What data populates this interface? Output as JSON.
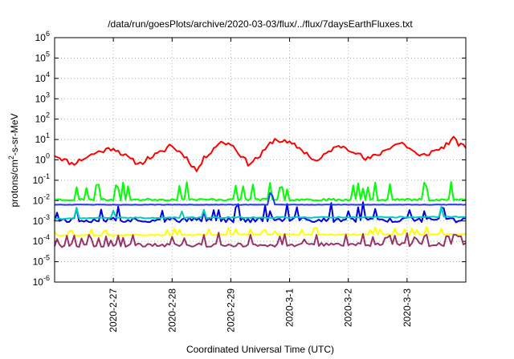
{
  "chart_data": {
    "type": "line",
    "title": "/data/run/goesPlots/archive/2020-03-03/flux/../flux/7daysEarthFluxes.txt",
    "xlabel": "Coordinated Universal Time (UTC)",
    "ylabel": {
      "pre": "protons/cm",
      "sup": "2",
      "post": "-s-sr-MeV"
    },
    "xlim": [
      0,
      7
    ],
    "ylim_log10": [
      -6,
      6
    ],
    "log_scale_y": true,
    "grid": true,
    "x_ticks": [
      {
        "x": 1,
        "label": "2020-2-27"
      },
      {
        "x": 2,
        "label": "2020-2-28"
      },
      {
        "x": 3,
        "label": "2020-2-29"
      },
      {
        "x": 4,
        "label": "2020-3-1"
      },
      {
        "x": 5,
        "label": "2020-3-2"
      },
      {
        "x": 6,
        "label": "2020-3-3"
      }
    ],
    "y_ticks": [
      {
        "exp": 6,
        "base": "10",
        "sup": "6"
      },
      {
        "exp": 5,
        "base": "10",
        "sup": "5"
      },
      {
        "exp": 4,
        "base": "10",
        "sup": "4"
      },
      {
        "exp": 3,
        "base": "10",
        "sup": "3"
      },
      {
        "exp": 2,
        "base": "10",
        "sup": "2"
      },
      {
        "exp": 1,
        "base": "10",
        "sup": "1"
      },
      {
        "exp": 0,
        "base": "10",
        "sup": "0"
      },
      {
        "exp": -1,
        "base": "10",
        "sup": "-1"
      },
      {
        "exp": -2,
        "base": "10",
        "sup": "-2"
      },
      {
        "exp": -3,
        "base": "10",
        "sup": "-3"
      },
      {
        "exp": -4,
        "base": "10",
        "sup": "-4"
      },
      {
        "exp": -5,
        "base": "10",
        "sup": "-5"
      },
      {
        "exp": -6,
        "base": "10",
        "sup": "-6"
      }
    ],
    "series": [
      {
        "color": "#ff0000",
        "base": [
          [
            0,
            0.25
          ],
          [
            0.3,
            -0.2
          ],
          [
            0.7,
            0.35
          ],
          [
            1.0,
            0.6
          ],
          [
            1.3,
            0.0
          ],
          [
            1.45,
            -0.2
          ],
          [
            1.6,
            0.1
          ],
          [
            1.85,
            0.4
          ],
          [
            1.95,
            0.75
          ],
          [
            2.2,
            0.25
          ],
          [
            2.3,
            -0.1
          ],
          [
            2.42,
            -0.55
          ],
          [
            2.55,
            0.1
          ],
          [
            2.8,
            0.85
          ],
          [
            3.0,
            0.8
          ],
          [
            3.15,
            0.3
          ],
          [
            3.3,
            -0.2
          ],
          [
            3.5,
            0.2
          ],
          [
            3.7,
            0.9
          ],
          [
            3.75,
            1.0
          ],
          [
            3.9,
            0.9
          ],
          [
            4.1,
            0.7
          ],
          [
            4.3,
            0.3
          ],
          [
            4.45,
            -0.1
          ],
          [
            4.55,
            0.1
          ],
          [
            4.7,
            0.5
          ],
          [
            4.9,
            0.7
          ],
          [
            5.0,
            0.55
          ],
          [
            5.1,
            0.45
          ],
          [
            5.3,
            0.0
          ],
          [
            5.5,
            0.25
          ],
          [
            5.75,
            0.7
          ],
          [
            5.9,
            0.85
          ],
          [
            6.1,
            0.45
          ],
          [
            6.2,
            0.15
          ],
          [
            6.35,
            0.3
          ],
          [
            6.6,
            0.6
          ],
          [
            6.8,
            1.05
          ],
          [
            6.9,
            0.7
          ],
          [
            7.0,
            0.65
          ]
        ],
        "noise": 0.12,
        "spikes": 0.0,
        "seed": 11
      },
      {
        "color": "#00ff00",
        "base": [
          [
            0,
            -1.95
          ],
          [
            7,
            -1.95
          ]
        ],
        "noise": 0.05,
        "spikes": 0.14,
        "spikeAmp": 0.9,
        "seed": 23
      },
      {
        "color": "#0000dd",
        "base": [
          [
            0,
            -2.95
          ],
          [
            7,
            -2.95
          ]
        ],
        "noise": 0.12,
        "spikes": 0.14,
        "spikeAmp": 0.85,
        "seed": 37
      },
      {
        "color": "#00ccbb",
        "base": [
          [
            0,
            -2.9
          ],
          [
            0.5,
            -2.85
          ],
          [
            7,
            -2.8
          ]
        ],
        "noise": 0.03,
        "spikes": 0.08,
        "spikeAmp": 0.55,
        "seed": 41
      },
      {
        "color": "#2233ff",
        "base": [
          [
            0,
            -2.2
          ],
          [
            7,
            -2.2
          ]
        ],
        "noise": 0.01,
        "spikes": 0.03,
        "spikeAmp": 0.6,
        "seed": 5
      },
      {
        "color": "#ffff00",
        "base": [
          [
            0,
            -3.7
          ],
          [
            7,
            -3.65
          ]
        ],
        "noise": 0.03,
        "spikes": 0.12,
        "spikeAmp": 0.35,
        "seed": 53
      },
      {
        "color": "#993366",
        "base": [
          [
            0,
            -4.2
          ],
          [
            7,
            -4.15
          ]
        ],
        "noise": 0.09,
        "spikes": 0.18,
        "spikeAmp": 0.55,
        "seed": 67
      }
    ]
  }
}
